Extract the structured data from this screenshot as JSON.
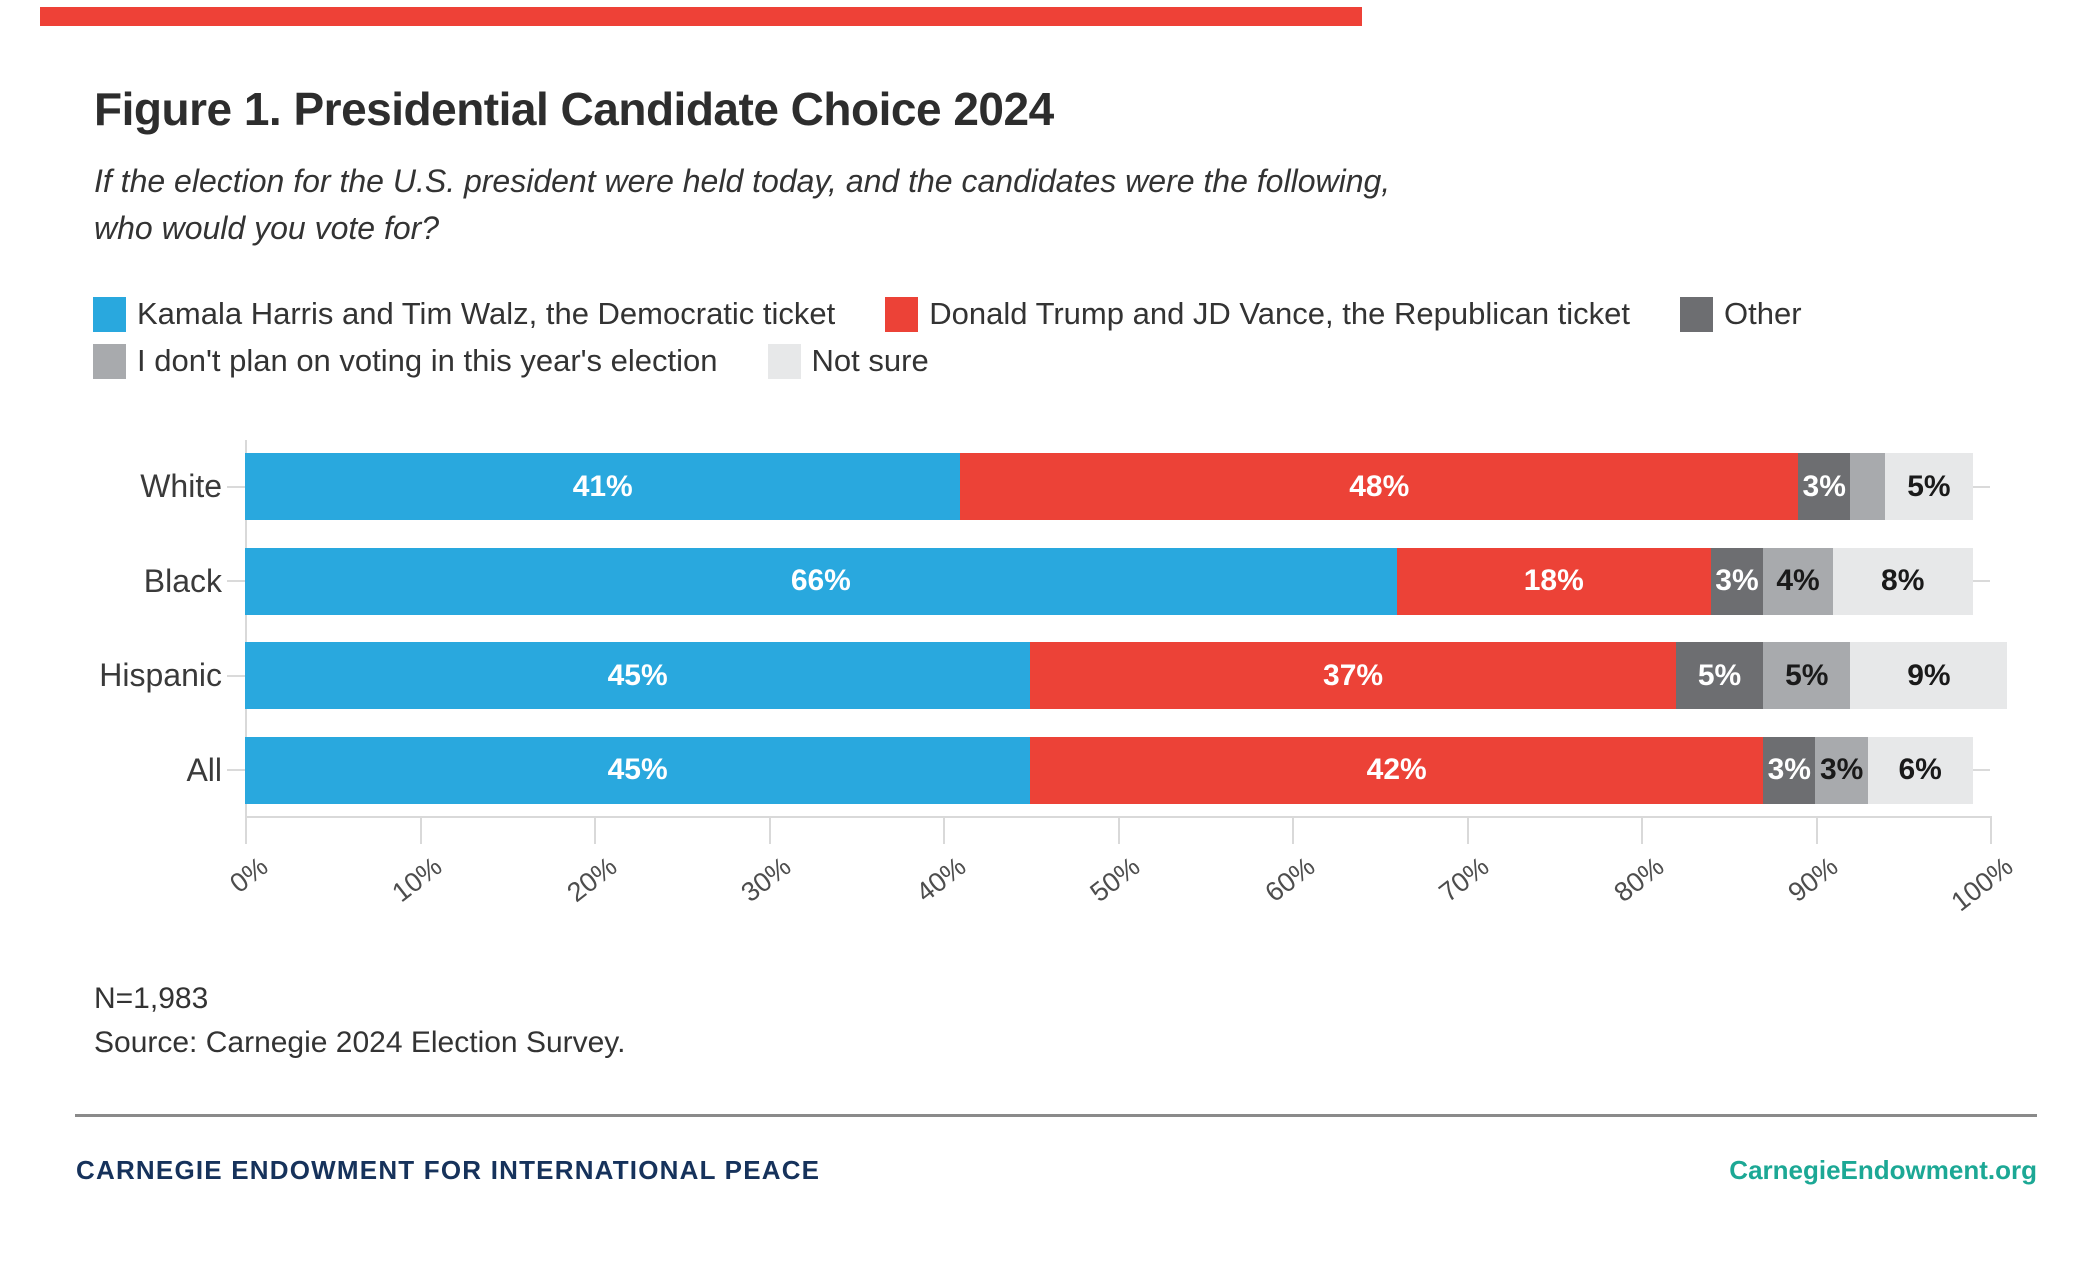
{
  "header": {
    "title": "Figure 1. Presidential Candidate Choice 2024",
    "subtitle_line1": "If the election for the U.S. president were held today, and the candidates were the following,",
    "subtitle_line2": "who would you vote for?"
  },
  "palette": {
    "accent_red": "#EE4137",
    "democrat_blue": "#29A8DE",
    "republican_red": "#EC4237",
    "other_dark_gray": "#6D6E71",
    "no_vote_gray": "#A8AAAD",
    "not_sure_light_gray": "#E7E8E9",
    "footer_navy": "#16325B",
    "footer_teal": "#1CA895"
  },
  "legend": {
    "rows": [
      [
        {
          "label": "Kamala Harris and Tim Walz, the Democratic ticket",
          "color": "#29A8DE"
        },
        {
          "label": "Donald Trump and JD Vance, the Republican ticket",
          "color": "#EC4237"
        },
        {
          "label": "Other",
          "color": "#6D6E71"
        }
      ],
      [
        {
          "label": "I don't plan on voting in this year's election",
          "color": "#A8AAAD"
        },
        {
          "label": "Not sure",
          "color": "#E7E8E9"
        }
      ]
    ]
  },
  "chart_data": {
    "type": "bar",
    "orientation": "horizontal-stacked",
    "categories": [
      "White",
      "Black",
      "Hispanic",
      "All"
    ],
    "series": [
      {
        "name": "Kamala Harris and Tim Walz, the Democratic ticket",
        "color": "#29A8DE",
        "label_color": "#ffffff",
        "values": [
          41,
          66,
          45,
          45
        ],
        "labels": [
          "41%",
          "66%",
          "45%",
          "45%"
        ]
      },
      {
        "name": "Donald Trump and JD Vance, the Republican ticket",
        "color": "#EC4237",
        "label_color": "#ffffff",
        "values": [
          48,
          18,
          37,
          42
        ],
        "labels": [
          "48%",
          "18%",
          "37%",
          "42%"
        ]
      },
      {
        "name": "Other",
        "color": "#6D6E71",
        "label_color": "#ffffff",
        "values": [
          3,
          3,
          5,
          3
        ],
        "labels": [
          "3%",
          "3%",
          "5%",
          "3%"
        ]
      },
      {
        "name": "I don't plan on voting in this year's election",
        "color": "#A8AAAD",
        "label_color": "#1a1a1a",
        "values": [
          2,
          4,
          5,
          3
        ],
        "labels": [
          "",
          "4%",
          "5%",
          "3%"
        ]
      },
      {
        "name": "Not sure",
        "color": "#E7E8E9",
        "label_color": "#1a1a1a",
        "values": [
          5,
          8,
          9,
          6
        ],
        "labels": [
          "5%",
          "8%",
          "9%",
          "6%"
        ]
      }
    ],
    "x_ticks": [
      "0%",
      "10%",
      "20%",
      "30%",
      "40%",
      "50%",
      "60%",
      "70%",
      "80%",
      "90%",
      "100%"
    ],
    "xlim": [
      0,
      100
    ],
    "grid": "horizontal-row-lines",
    "legend_position": "top"
  },
  "notes": {
    "n": "N=1,983",
    "source": "Source: Carnegie 2024 Election Survey."
  },
  "footer": {
    "left": "CARNEGIE ENDOWMENT FOR INTERNATIONAL PEACE",
    "right": "CarnegieEndowment.org"
  }
}
